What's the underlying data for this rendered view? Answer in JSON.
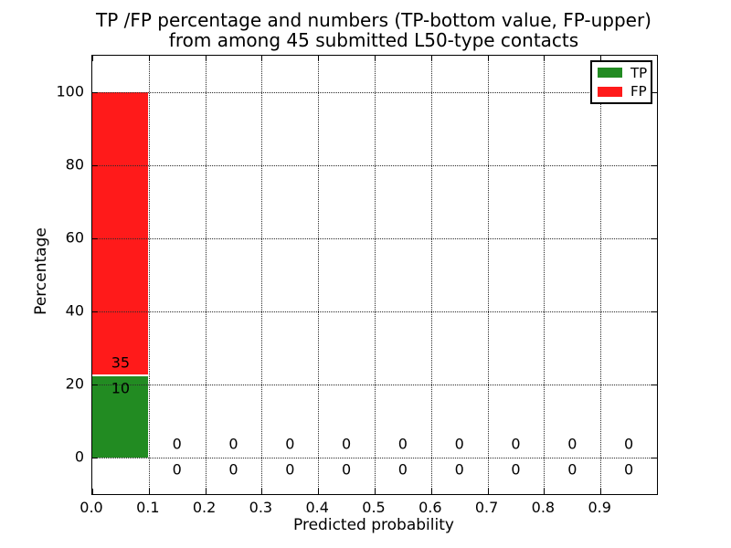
{
  "figure": {
    "title_line1": "TP /FP percentage and numbers (TP-bottom value, FP-upper)",
    "title_line2": "from among 45 submitted L50-type contacts",
    "xlabel": "Predicted probability",
    "ylabel": "Percentage"
  },
  "legend": {
    "position": "upper-right",
    "entries": [
      {
        "label": "TP",
        "color": "#228b22"
      },
      {
        "label": "FP",
        "color": "#ff1a1a"
      }
    ]
  },
  "chart_data": {
    "type": "bar",
    "stacked": true,
    "title": "TP /FP percentage and numbers (TP-bottom value, FP-upper) from among 45 submitted L50-type contacts",
    "xlabel": "Predicted probability",
    "ylabel": "Percentage",
    "total_contacts": 45,
    "xlim": [
      0.0,
      1.0
    ],
    "ylim": [
      -10,
      110
    ],
    "xticks": [
      "0.0",
      "0.1",
      "0.2",
      "0.3",
      "0.4",
      "0.5",
      "0.6",
      "0.7",
      "0.8",
      "0.9"
    ],
    "yticks": [
      "0",
      "20",
      "40",
      "60",
      "80",
      "100"
    ],
    "ytick_values": [
      0,
      20,
      40,
      60,
      80,
      100
    ],
    "bin_starts": [
      0.0,
      0.1,
      0.2,
      0.3,
      0.4,
      0.5,
      0.6,
      0.7,
      0.8,
      0.9
    ],
    "bin_width": 0.1,
    "grid": true,
    "grid_style": "dotted",
    "background_color": "#ffffff",
    "annotation_note": "per-bin counts drawn on chart: FP count above TP count",
    "series": [
      {
        "name": "TP",
        "color": "#228b22",
        "counts": [
          10,
          0,
          0,
          0,
          0,
          0,
          0,
          0,
          0,
          0
        ],
        "percentages": [
          22.2,
          0,
          0,
          0,
          0,
          0,
          0,
          0,
          0,
          0
        ]
      },
      {
        "name": "FP",
        "color": "#ff1a1a",
        "counts": [
          35,
          0,
          0,
          0,
          0,
          0,
          0,
          0,
          0,
          0
        ],
        "percentages": [
          77.8,
          0,
          0,
          0,
          0,
          0,
          0,
          0,
          0,
          0
        ]
      }
    ]
  }
}
